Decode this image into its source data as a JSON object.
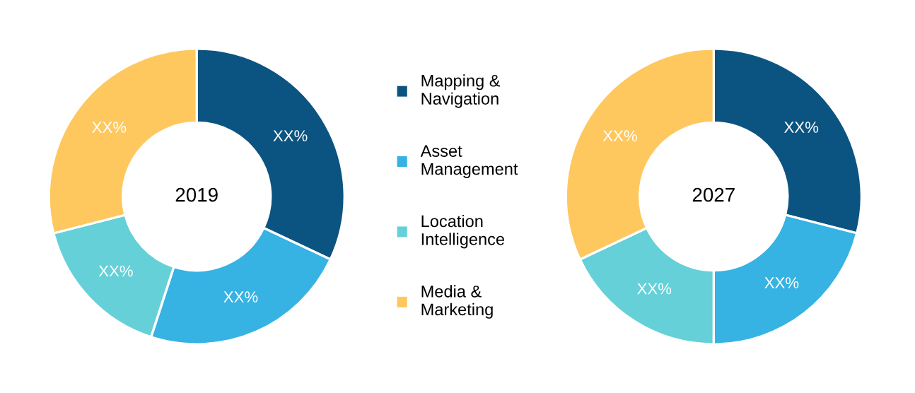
{
  "chart_data": {
    "type": "donut",
    "categories": [
      "Mapping & Navigation",
      "Asset Management",
      "Location Intelligence",
      "Media & Marketing"
    ],
    "colors": [
      "#0b5481",
      "#36b2e3",
      "#65d0d8",
      "#fec85f"
    ],
    "legend": "right",
    "series": [
      {
        "name": "2019",
        "values": [
          32,
          23,
          16,
          29
        ],
        "value_labels": [
          "XX%",
          "XX%",
          "XX%",
          "XX%"
        ]
      },
      {
        "name": "2027",
        "values": [
          29,
          21,
          18,
          32
        ],
        "value_labels": [
          "XX%",
          "XX%",
          "XX%",
          "XX%"
        ]
      }
    ]
  }
}
